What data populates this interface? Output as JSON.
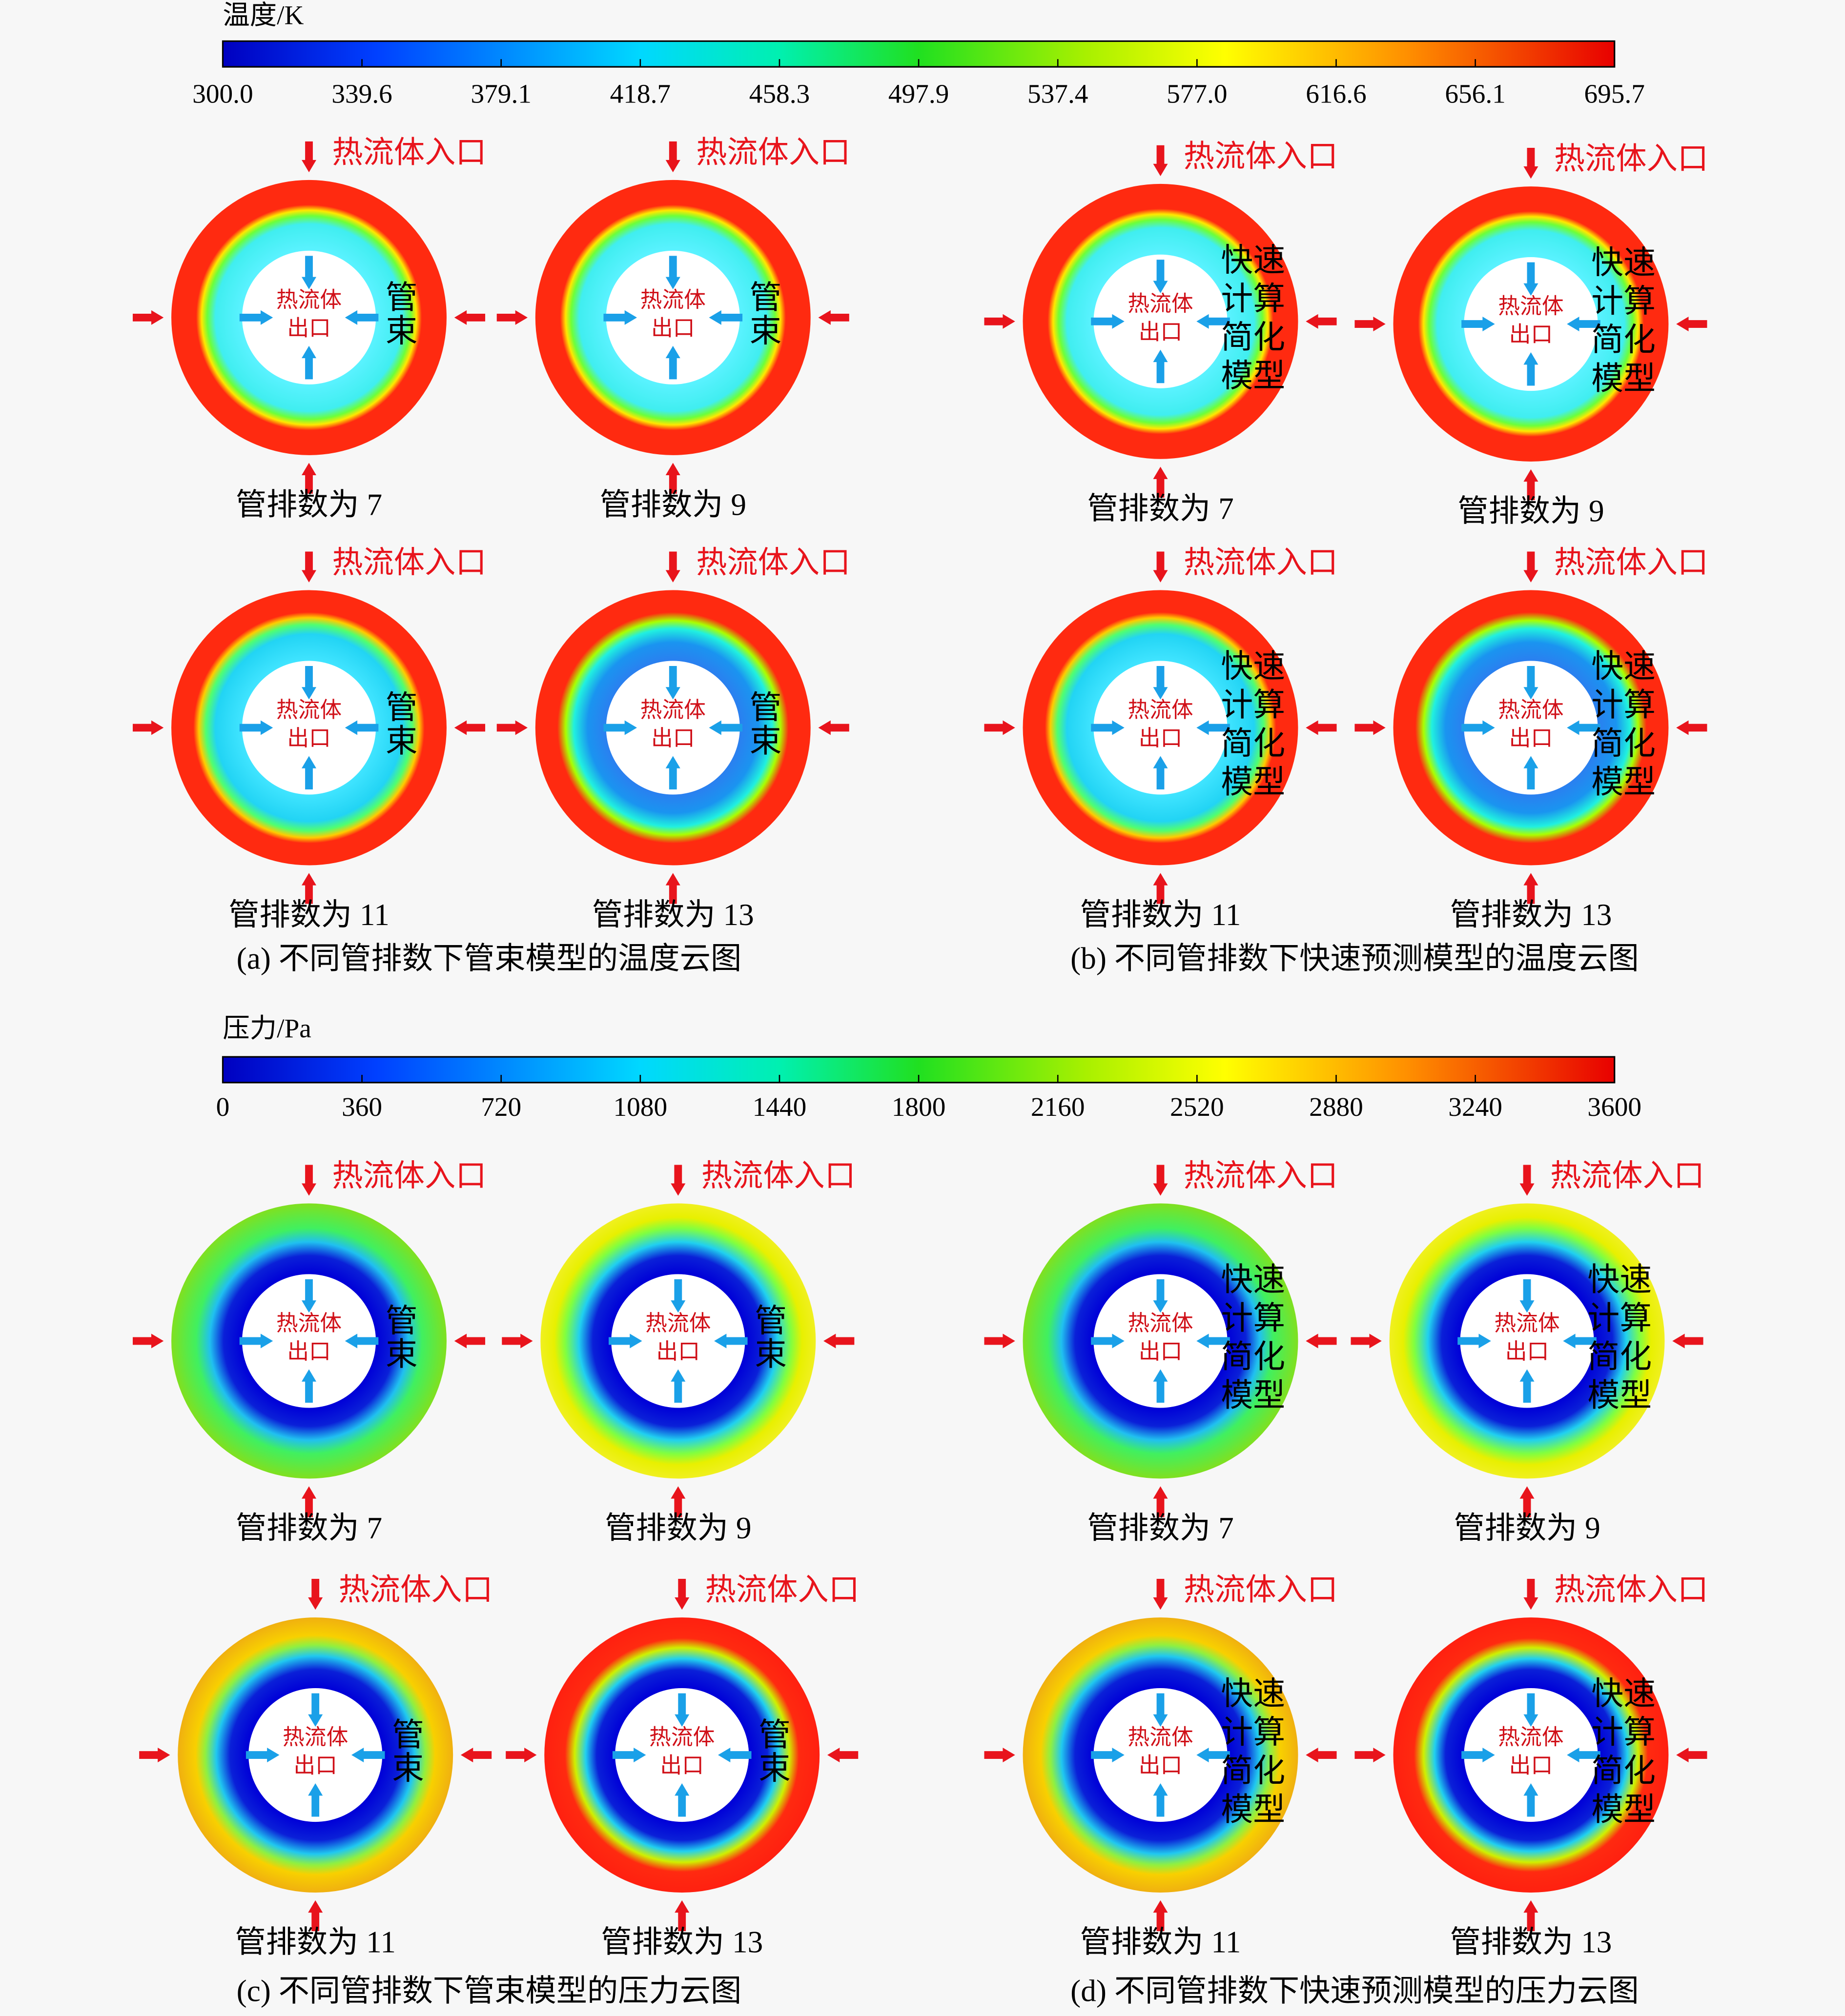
{
  "colorbars": [
    {
      "title": "温度/K",
      "ticks": [
        "300.0",
        "339.6",
        "379.1",
        "418.7",
        "458.3",
        "497.9",
        "537.4",
        "577.0",
        "616.6",
        "656.1",
        "695.7"
      ]
    },
    {
      "title": "压力/Pa",
      "ticks": [
        "0",
        "360",
        "720",
        "1080",
        "1440",
        "1800",
        "2160",
        "2520",
        "2880",
        "3240",
        "3600"
      ]
    }
  ],
  "panels": [
    {
      "caption": "(a) 不同管排数下管束模型的温度云图",
      "plots": [
        {
          "label": "管排数为 7",
          "inlet": "热流体入口",
          "outlet": [
            "热流体",
            "出口"
          ],
          "side": [
            "管",
            "束"
          ]
        },
        {
          "label": "管排数为 9",
          "inlet": "热流体入口",
          "outlet": [
            "热流体",
            "出口"
          ],
          "side": [
            "管",
            "束"
          ]
        },
        {
          "label": "管排数为 11",
          "inlet": "热流体入口",
          "outlet": [
            "热流体",
            "出口"
          ],
          "side": [
            "管",
            "束"
          ]
        },
        {
          "label": "管排数为 13",
          "inlet": "热流体入口",
          "outlet": [
            "热流体",
            "出口"
          ],
          "side": [
            "管",
            "束"
          ]
        }
      ]
    },
    {
      "caption": "(b) 不同管排数下快速预测模型的温度云图",
      "plots": [
        {
          "label": "管排数为 7",
          "inlet": "热流体入口",
          "outlet": [
            "热流体",
            "出口"
          ],
          "side": [
            "快速",
            "计算",
            "简化",
            "模型"
          ]
        },
        {
          "label": "管排数为 9",
          "inlet": "热流体入口",
          "outlet": [
            "热流体",
            "出口"
          ],
          "side": [
            "快速",
            "计算",
            "简化",
            "模型"
          ]
        },
        {
          "label": "管排数为 11",
          "inlet": "热流体入口",
          "outlet": [
            "热流体",
            "出口"
          ],
          "side": [
            "快速",
            "计算",
            "简化",
            "模型"
          ]
        },
        {
          "label": "管排数为 13",
          "inlet": "热流体入口",
          "outlet": [
            "热流体",
            "出口"
          ],
          "side": [
            "快速",
            "计算",
            "简化",
            "模型"
          ]
        }
      ]
    },
    {
      "caption": "(c) 不同管排数下管束模型的压力云图",
      "plots": [
        {
          "label": "管排数为 7",
          "inlet": "热流体入口",
          "outlet": [
            "热流体",
            "出口"
          ],
          "side": [
            "管",
            "束"
          ]
        },
        {
          "label": "管排数为 9",
          "inlet": "热流体入口",
          "outlet": [
            "热流体",
            "出口"
          ],
          "side": [
            "管",
            "束"
          ]
        },
        {
          "label": "管排数为 11",
          "inlet": "热流体入口",
          "outlet": [
            "热流体",
            "出口"
          ],
          "side": [
            "管",
            "束"
          ]
        },
        {
          "label": "管排数为 13",
          "inlet": "热流体入口",
          "outlet": [
            "热流体",
            "出口"
          ],
          "side": [
            "管",
            "束"
          ]
        }
      ]
    },
    {
      "caption": "(d) 不同管排数下快速预测模型的压力云图",
      "plots": [
        {
          "label": "管排数为 7",
          "inlet": "热流体入口",
          "outlet": [
            "热流体",
            "出口"
          ],
          "side": [
            "快速",
            "计算",
            "简化",
            "模型"
          ]
        },
        {
          "label": "管排数为 9",
          "inlet": "热流体入口",
          "outlet": [
            "热流体",
            "出口"
          ],
          "side": [
            "快速",
            "计算",
            "简化",
            "模型"
          ]
        },
        {
          "label": "管排数为 11",
          "inlet": "热流体入口",
          "outlet": [
            "热流体",
            "出口"
          ],
          "side": [
            "快速",
            "计算",
            "简化",
            "模型"
          ]
        },
        {
          "label": "管排数为 13",
          "inlet": "热流体入口",
          "outlet": [
            "热流体",
            "出口"
          ],
          "side": [
            "快速",
            "计算",
            "简化",
            "模型"
          ]
        }
      ]
    }
  ]
}
